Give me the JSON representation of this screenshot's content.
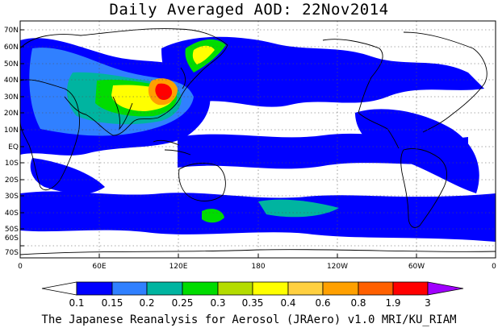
{
  "title": "Daily Averaged AOD: 22Nov2014",
  "footer": "The Japanese Reanalysis for Aerosol (JRAero) v1.0 MRI/KU_RIAM",
  "map": {
    "projection": "equirectangular, 0E to 360E",
    "lat_labels": [
      "70N",
      "60N",
      "50N",
      "40N",
      "30N",
      "20N",
      "10N",
      "EQ",
      "10S",
      "20S",
      "30S",
      "40S",
      "50S",
      "60S",
      "70S"
    ],
    "lon_labels": [
      "0",
      "60E",
      "120E",
      "180",
      "120W",
      "60W",
      "0"
    ],
    "grid": true,
    "gridline_style": "dotted"
  },
  "colorbar": {
    "levels": [
      "0.1",
      "0.15",
      "0.2",
      "0.25",
      "0.3",
      "0.35",
      "0.4",
      "0.6",
      "0.8",
      "1.9",
      "3"
    ],
    "colors": [
      "#ffffff",
      "#0000ff",
      "#3080ff",
      "#00b4a0",
      "#00dc00",
      "#b4dc00",
      "#ffff00",
      "#ffd040",
      "#ffa000",
      "#ff6000",
      "#ff0000",
      "#a000ff"
    ],
    "ends": "triangular"
  }
}
